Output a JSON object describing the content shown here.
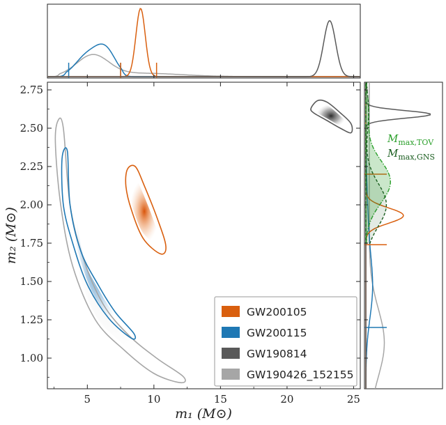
{
  "chart_data": {
    "type": "scatter",
    "subtype": "corner-plot-2d-posterior-with-marginals",
    "xlabel": "m₁ (M⊙)",
    "ylabel": "m₂ (M⊙)",
    "xlim": [
      2,
      25.5
    ],
    "ylim": [
      0.8,
      2.8
    ],
    "xticks": [
      {
        "value": 5,
        "label": "5"
      },
      {
        "value": 10,
        "label": "10"
      },
      {
        "value": 15,
        "label": "15"
      },
      {
        "value": 20,
        "label": "20"
      },
      {
        "value": 25,
        "label": "25"
      }
    ],
    "yticks": [
      {
        "value": 1.0,
        "label": "1.00"
      },
      {
        "value": 1.25,
        "label": "1.25"
      },
      {
        "value": 1.5,
        "label": "1.50"
      },
      {
        "value": 1.75,
        "label": "1.75"
      },
      {
        "value": 2.0,
        "label": "2.00"
      },
      {
        "value": 2.25,
        "label": "2.25"
      },
      {
        "value": 2.5,
        "label": "2.50"
      },
      {
        "value": 2.75,
        "label": "2.75"
      }
    ],
    "legend_position": "lower-right",
    "series": [
      {
        "name": "GW200105",
        "color": "#d95f0e",
        "contour": [
          [
            8.6,
            2.25
          ],
          [
            9.3,
            2.12
          ],
          [
            10.3,
            1.9
          ],
          [
            10.9,
            1.73
          ],
          [
            10.5,
            1.68
          ],
          [
            9.2,
            1.78
          ],
          [
            8.3,
            1.97
          ],
          [
            7.9,
            2.12
          ],
          [
            8.0,
            2.23
          ]
        ],
        "density_peak": [
          9.0,
          1.93
        ],
        "m1_marginal": {
          "peak": 9.0,
          "width": 0.35,
          "height": 1.0,
          "ci": [
            7.5,
            10.2
          ]
        },
        "m2_marginal": {
          "peak": 1.93,
          "width": 0.05,
          "height": 0.55,
          "ci": [
            1.74,
            2.2
          ]
        }
      },
      {
        "name": "GW200115",
        "color": "#1f78b4",
        "contour": [
          [
            3.5,
            2.35
          ],
          [
            3.7,
            2.0
          ],
          [
            4.5,
            1.7
          ],
          [
            5.8,
            1.48
          ],
          [
            7.1,
            1.3
          ],
          [
            8.5,
            1.16
          ],
          [
            8.3,
            1.13
          ],
          [
            6.6,
            1.26
          ],
          [
            5.0,
            1.48
          ],
          [
            3.9,
            1.75
          ],
          [
            3.2,
            2.0
          ],
          [
            3.1,
            2.3
          ]
        ],
        "density_peak": [
          6.0,
          1.36
        ],
        "m1_marginal": {
          "peak": 6.0,
          "width": 1.3,
          "height": 0.36,
          "ci": [
            3.6,
            7.5
          ]
        },
        "m2_marginal": {
          "peak": 1.42,
          "width": 0.22,
          "height": 0.09,
          "ci": [
            1.2,
            1.74
          ]
        }
      },
      {
        "name": "GW190814",
        "color": "#595959",
        "contour": [
          [
            21.8,
            2.63
          ],
          [
            22.3,
            2.68
          ],
          [
            23.0,
            2.67
          ],
          [
            24.0,
            2.6
          ],
          [
            24.8,
            2.53
          ],
          [
            24.8,
            2.47
          ],
          [
            24.0,
            2.5
          ],
          [
            23.0,
            2.55
          ],
          [
            22.0,
            2.6
          ]
        ],
        "density_peak": [
          23.2,
          2.59
        ],
        "m1_marginal": {
          "peak": 23.2,
          "width": 0.45,
          "height": 0.82
        },
        "m2_marginal": {
          "peak": 2.59,
          "width": 0.025,
          "height": 0.95
        }
      },
      {
        "name": "GW190426_152155",
        "color": "#a6a6a6",
        "contour": [
          [
            2.8,
            2.55
          ],
          [
            3.2,
            2.5
          ],
          [
            3.7,
            2.0
          ],
          [
            4.7,
            1.65
          ],
          [
            6.2,
            1.35
          ],
          [
            8.1,
            1.15
          ],
          [
            10.2,
            1.0
          ],
          [
            12.2,
            0.88
          ],
          [
            12.0,
            0.84
          ],
          [
            10.0,
            0.9
          ],
          [
            7.8,
            1.05
          ],
          [
            5.6,
            1.25
          ],
          [
            3.9,
            1.6
          ],
          [
            3.0,
            2.0
          ],
          [
            2.6,
            2.4
          ]
        ],
        "density_peak": [
          6.0,
          1.3
        ],
        "m1_marginal": {
          "peak": 5.5,
          "width": 2.2,
          "height": 0.3
        },
        "m2_marginal": {
          "peak": 1.25,
          "width": 0.35,
          "height": 0.22
        }
      }
    ],
    "annotations": [
      {
        "text": "M",
        "subscript": "max,TOV",
        "color": "#2ca02c",
        "style": "dash-dot",
        "m2_center": 2.1
      },
      {
        "text": "M",
        "subscript": "max,GNS",
        "color": "#1b5e20",
        "style": "dashed",
        "m2_center": 2.05
      }
    ]
  }
}
